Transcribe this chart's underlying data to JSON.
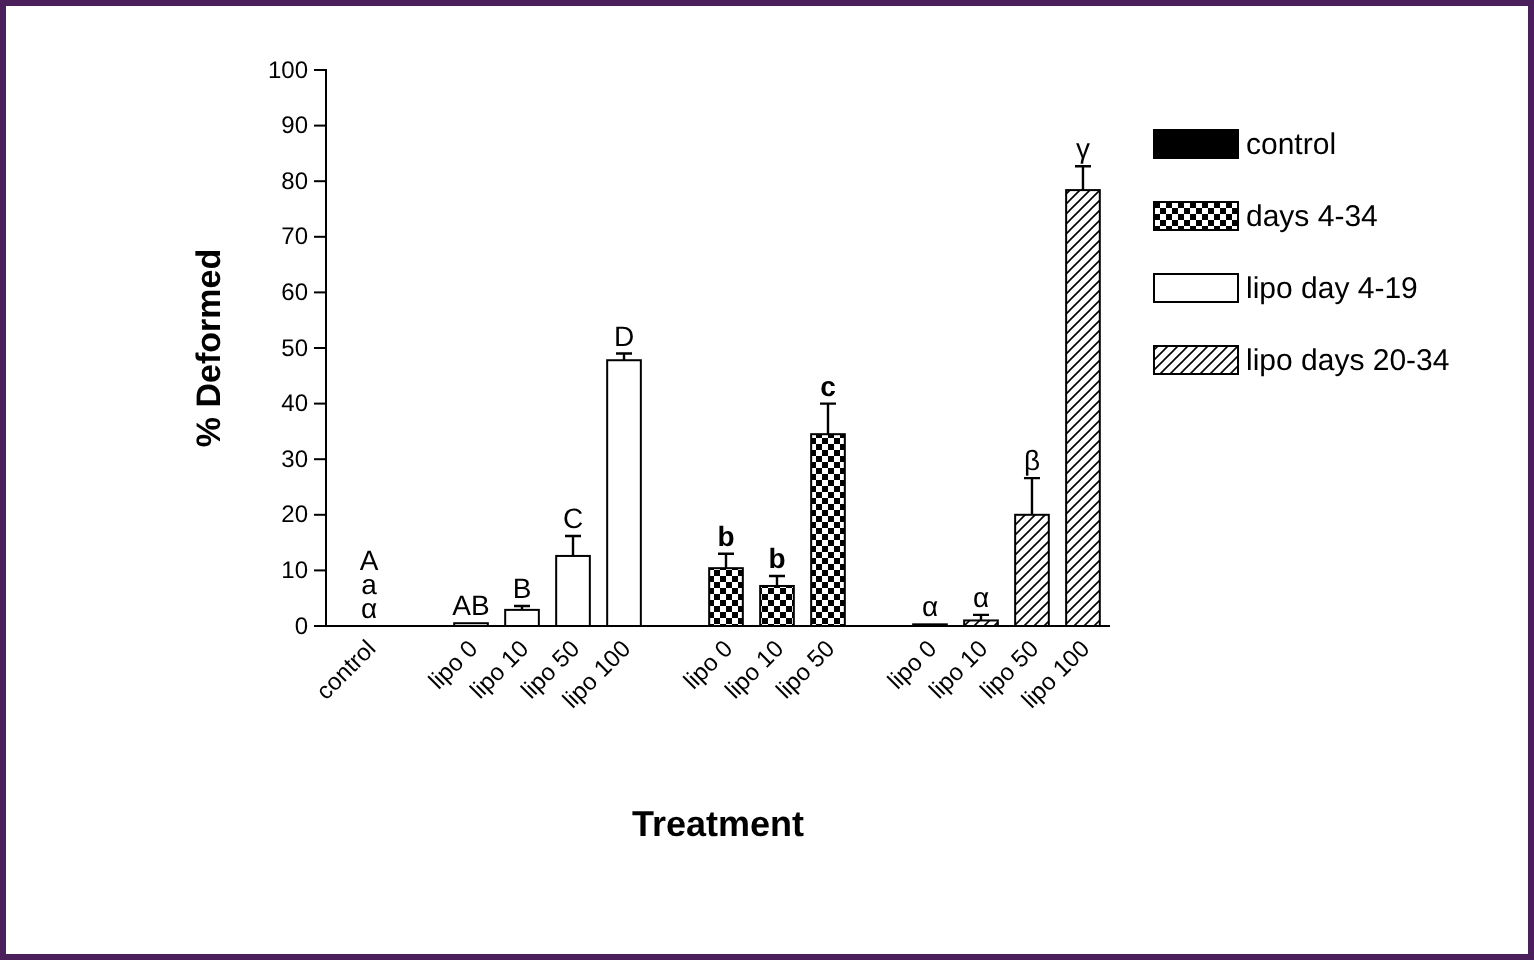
{
  "chart_data": {
    "type": "bar",
    "xlabel": "Treatment",
    "ylabel": "% Deformed",
    "categories": [
      "control",
      null,
      "lipo 0",
      "lipo 10",
      "lipo 50",
      "lipo 100",
      null,
      "lipo 0",
      "lipo 10",
      "lipo 50",
      null,
      "lipo 0",
      "lipo 10",
      "lipo 50",
      "lipo 100"
    ],
    "series": [
      {
        "name": "control",
        "color": "#000000",
        "values": [
          0,
          null,
          null,
          null,
          null,
          null,
          null,
          null,
          null,
          null,
          null,
          null,
          null,
          null,
          null
        ],
        "value_labels": [
          "A\na\nα",
          null,
          null,
          null,
          null,
          null,
          null,
          null,
          null,
          null,
          null,
          null,
          null,
          null,
          null
        ]
      },
      {
        "name": "days 4-34",
        "color": "#000000",
        "values": [
          null,
          null,
          null,
          null,
          null,
          null,
          null,
          10.4,
          7.2,
          34.5,
          null,
          null,
          null,
          null,
          null
        ],
        "errors": [
          null,
          null,
          null,
          null,
          null,
          null,
          null,
          [
            10.4,
            13
          ],
          [
            7.2,
            9
          ],
          [
            34.5,
            40
          ],
          null,
          null,
          null,
          null,
          null
        ],
        "value_labels": [
          null,
          null,
          null,
          null,
          null,
          null,
          null,
          "b",
          "b",
          "c",
          null,
          null,
          null,
          null,
          null
        ]
      },
      {
        "name": "lipo day 4-19",
        "color": "#ffffff",
        "values": [
          null,
          null,
          0.5,
          2.9,
          12.6,
          47.8,
          null,
          null,
          null,
          null,
          null,
          null,
          null,
          null,
          null
        ],
        "errors": [
          null,
          null,
          null,
          [
            2.9,
            3.6
          ],
          [
            12.6,
            16.2
          ],
          [
            47.8,
            49
          ],
          null,
          null,
          null,
          null,
          null,
          null,
          null,
          null,
          null
        ],
        "value_labels": [
          null,
          null,
          "AB",
          "B",
          "C",
          "D",
          null,
          null,
          null,
          null,
          null,
          null,
          null,
          null,
          null
        ]
      },
      {
        "name": "lipo days 20-34",
        "color": "#000000",
        "values": [
          null,
          null,
          null,
          null,
          null,
          null,
          null,
          null,
          null,
          null,
          null,
          0.3,
          1,
          20,
          78.4
        ],
        "errors": [
          null,
          null,
          null,
          null,
          null,
          null,
          null,
          null,
          null,
          null,
          null,
          null,
          [
            1,
            2
          ],
          [
            20,
            26.6
          ],
          [
            78.4,
            82.7
          ]
        ],
        "value_labels": [
          null,
          null,
          null,
          null,
          null,
          null,
          null,
          null,
          null,
          null,
          null,
          "α",
          "α",
          "β",
          "γ"
        ]
      }
    ],
    "stacked": true,
    "ylim": [
      0,
      100
    ],
    "yticks": [
      0,
      10,
      20,
      30,
      40,
      50,
      60,
      70,
      80,
      90,
      100
    ],
    "legend": "top right"
  }
}
